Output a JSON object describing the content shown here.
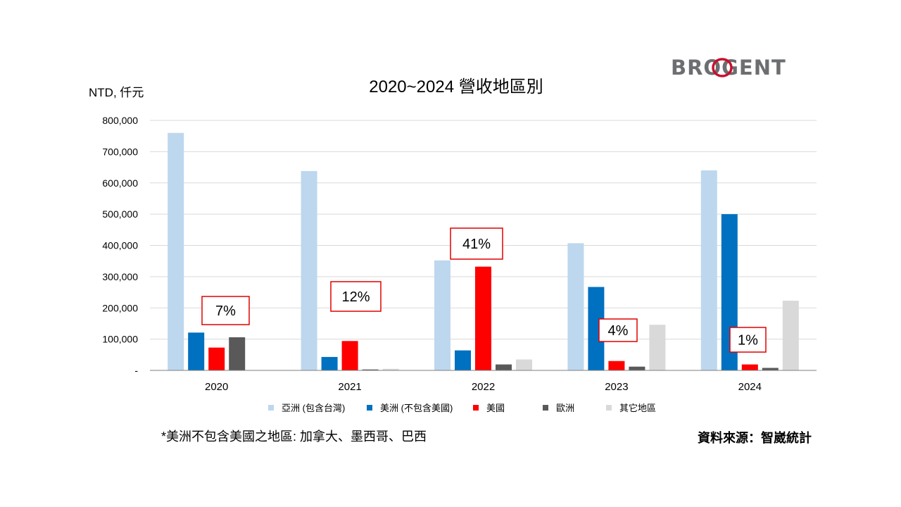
{
  "brand": {
    "logo_text": "BROGENT",
    "logo_accent": "#c8102e",
    "logo_color": "#6d6e71"
  },
  "chart_data": {
    "type": "bar",
    "title": "2020~2024 營收地區別",
    "unit_label": "NTD, 仟元",
    "ylim": [
      0,
      800000
    ],
    "y_ticks": [
      "-",
      "100,000",
      "200,000",
      "300,000",
      "400,000",
      "500,000",
      "600,000",
      "700,000",
      "800,000"
    ],
    "y_tick_values": [
      0,
      100000,
      200000,
      300000,
      400000,
      500000,
      600000,
      700000,
      800000
    ],
    "grid": true,
    "legend_position": "bottom",
    "categories": [
      "2020",
      "2021",
      "2022",
      "2023",
      "2024"
    ],
    "series": [
      {
        "name": "亞洲 (包含台灣)",
        "color": "#bdd7ee",
        "values": [
          760000,
          638000,
          352000,
          407000,
          640000
        ]
      },
      {
        "name": "美洲 (不包含美國)",
        "color": "#0070c0",
        "values": [
          121000,
          43000,
          64000,
          267000,
          500000
        ]
      },
      {
        "name": "美國",
        "color": "#ff0000",
        "values": [
          73000,
          94000,
          332000,
          30000,
          19000
        ]
      },
      {
        "name": "歐洲",
        "color": "#595959",
        "values": [
          106000,
          3000,
          19000,
          12000,
          8000
        ]
      },
      {
        "name": "其它地區",
        "color": "#d9d9d9",
        "values": [
          0,
          5000,
          35000,
          146000,
          223000
        ]
      }
    ],
    "annotations": [
      {
        "category": "2020",
        "text": "7%"
      },
      {
        "category": "2021",
        "text": "12%"
      },
      {
        "category": "2022",
        "text": "41%"
      },
      {
        "category": "2023",
        "text": "4%"
      },
      {
        "category": "2024",
        "text": "1%"
      }
    ]
  },
  "footnote": "*美洲不包含美國之地區: 加拿大、墨西哥、巴西",
  "source": "資料來源：智崴統計",
  "callout_border_color": "#e00000",
  "gridline_color": "#d9d9d9"
}
